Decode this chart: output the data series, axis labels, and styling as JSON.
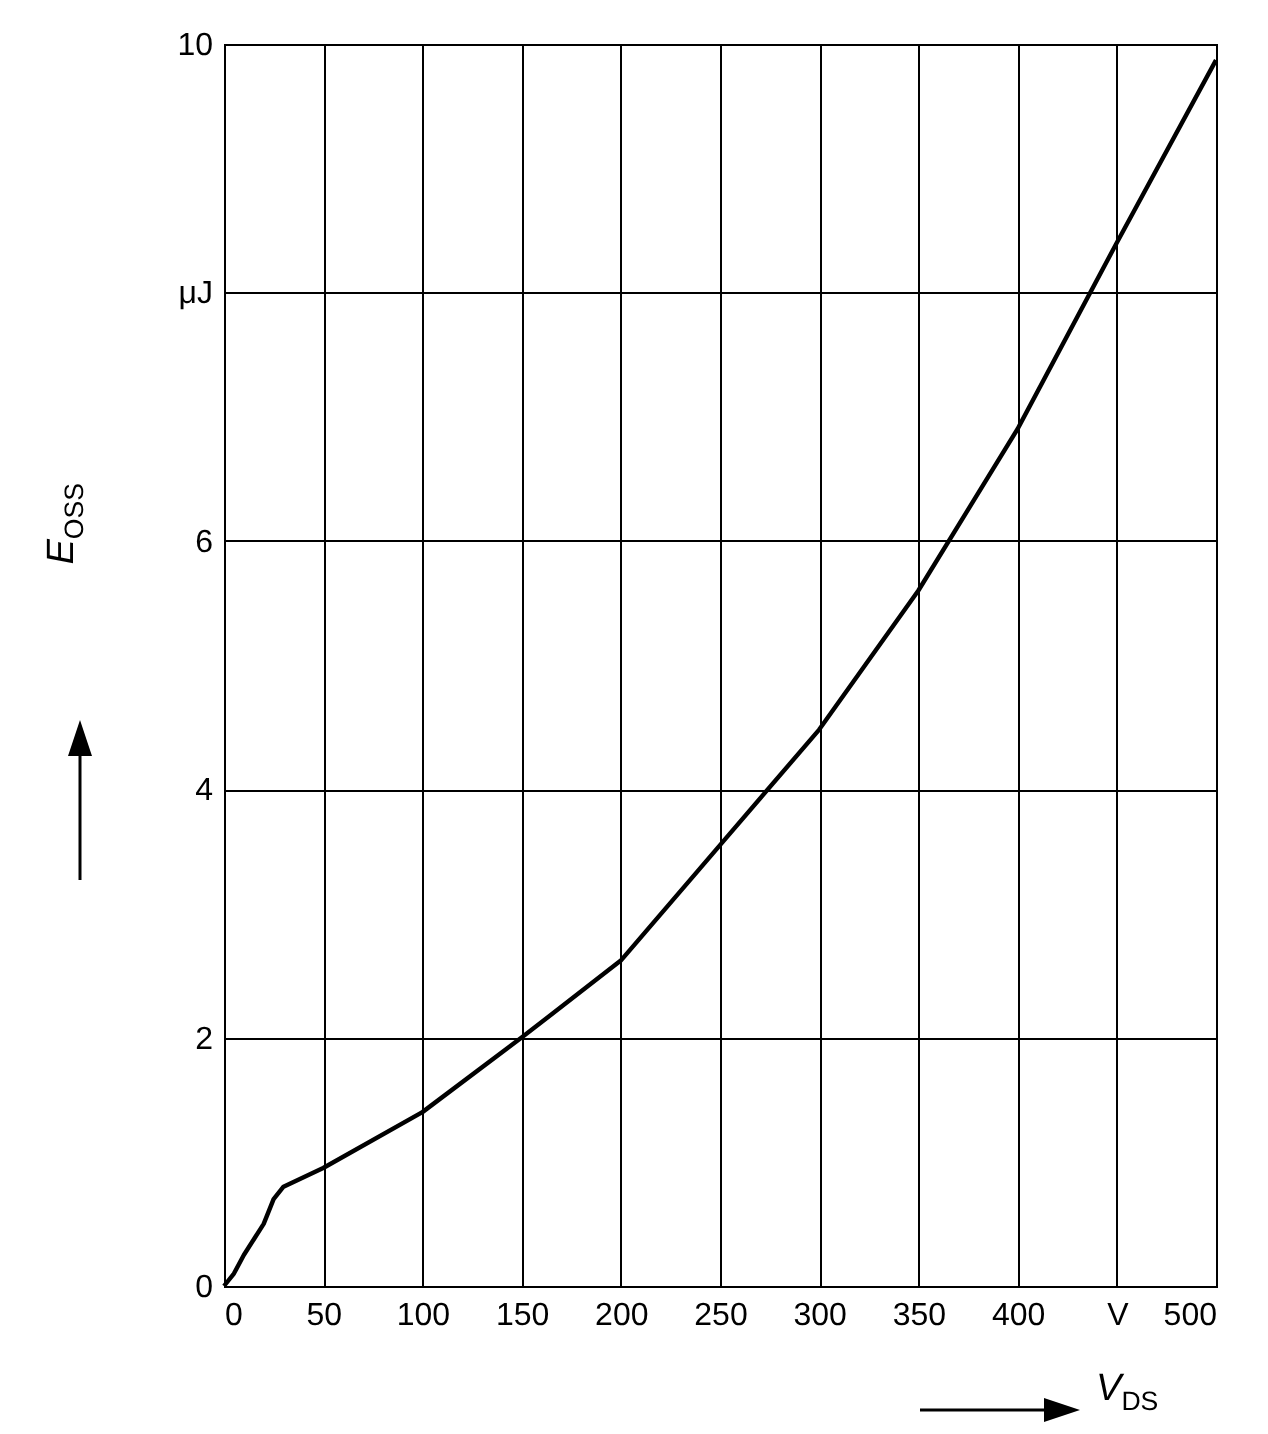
{
  "chart_data": {
    "type": "line",
    "xlabel": "V$_{DS}$",
    "ylabel": "E$_{OSS}$",
    "x": [
      0,
      5,
      10,
      20,
      25,
      30,
      50,
      100,
      150,
      200,
      250,
      300,
      350,
      400,
      450,
      500
    ],
    "series": [
      {
        "color": "#000000",
        "values": [
          0,
          0.1,
          0.25,
          0.5,
          0.7,
          0.8,
          0.95,
          1.4,
          2.0,
          2.62,
          3.55,
          4.48,
          5.6,
          6.9,
          8.4,
          9.87
        ]
      }
    ],
    "xlim": [
      0,
      500
    ],
    "ylim": [
      0,
      10
    ],
    "xticks": [
      0,
      50,
      100,
      150,
      200,
      250,
      300,
      350,
      400,
      {
        "value": 450,
        "label": "V"
      },
      500
    ],
    "yticks": [
      0,
      2,
      4,
      6,
      {
        "value": 8,
        "label": "μJ"
      },
      10
    ],
    "grid": true,
    "legend": false,
    "marker": "none",
    "line_style": "solid"
  }
}
